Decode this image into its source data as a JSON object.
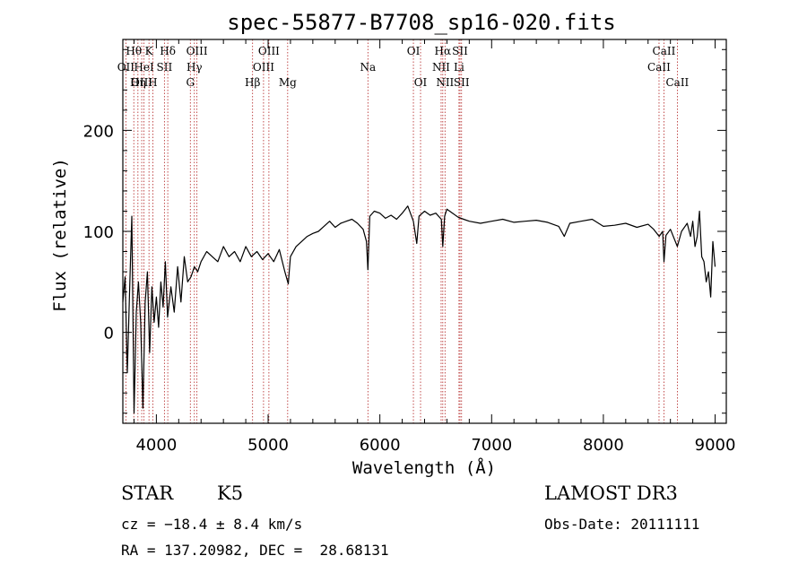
{
  "chart_data": {
    "type": "line",
    "title": "spec-55877-B7708_sp16-020.fits",
    "xlabel": "Wavelength (Å)",
    "ylabel": "Flux (relative)",
    "xlim": [
      3700,
      9100
    ],
    "ylim": [
      -90,
      290
    ],
    "xticks": [
      {
        "value": 4000,
        "label": "4000"
      },
      {
        "value": 5000,
        "label": "5000"
      },
      {
        "value": 6000,
        "label": "6000"
      },
      {
        "value": 7000,
        "label": "7000"
      },
      {
        "value": 8000,
        "label": "8000"
      },
      {
        "value": 9000,
        "label": "9000"
      }
    ],
    "yticks": [
      {
        "value": 0,
        "label": "0"
      },
      {
        "value": 100,
        "label": "100"
      },
      {
        "value": 200,
        "label": "200"
      }
    ],
    "series": [
      {
        "name": "flux",
        "x": [
          3700,
          3720,
          3740,
          3760,
          3780,
          3800,
          3820,
          3840,
          3860,
          3880,
          3900,
          3920,
          3940,
          3960,
          3980,
          4000,
          4020,
          4040,
          4060,
          4080,
          4100,
          4130,
          4160,
          4190,
          4220,
          4250,
          4280,
          4310,
          4340,
          4370,
          4400,
          4450,
          4500,
          4550,
          4600,
          4650,
          4700,
          4750,
          4800,
          4850,
          4900,
          4950,
          5000,
          5050,
          5100,
          5150,
          5180,
          5200,
          5250,
          5300,
          5350,
          5400,
          5450,
          5500,
          5550,
          5600,
          5650,
          5700,
          5750,
          5800,
          5850,
          5880,
          5893,
          5910,
          5950,
          6000,
          6050,
          6100,
          6150,
          6200,
          6250,
          6300,
          6330,
          6350,
          6400,
          6450,
          6500,
          6550,
          6563,
          6580,
          6600,
          6650,
          6700,
          6750,
          6800,
          6900,
          7000,
          7100,
          7200,
          7300,
          7400,
          7500,
          7600,
          7650,
          7700,
          7800,
          7900,
          8000,
          8100,
          8200,
          8300,
          8400,
          8450,
          8500,
          8530,
          8542,
          8560,
          8600,
          8662,
          8700,
          8750,
          8780,
          8800,
          8820,
          8840,
          8860,
          8880,
          8900,
          8920,
          8940,
          8960,
          8980,
          9000
        ],
        "y": [
          30,
          55,
          -40,
          40,
          115,
          -80,
          20,
          50,
          10,
          -75,
          30,
          60,
          -20,
          45,
          10,
          35,
          5,
          50,
          25,
          70,
          15,
          45,
          20,
          65,
          30,
          75,
          50,
          55,
          65,
          60,
          70,
          80,
          75,
          70,
          85,
          75,
          80,
          70,
          85,
          75,
          80,
          72,
          78,
          70,
          82,
          60,
          48,
          75,
          85,
          90,
          95,
          98,
          100,
          105,
          110,
          104,
          108,
          110,
          112,
          108,
          102,
          90,
          62,
          115,
          120,
          118,
          113,
          116,
          112,
          118,
          125,
          110,
          88,
          115,
          120,
          116,
          118,
          112,
          85,
          115,
          122,
          118,
          114,
          112,
          110,
          108,
          110,
          112,
          109,
          110,
          111,
          109,
          105,
          95,
          108,
          110,
          112,
          105,
          106,
          108,
          104,
          107,
          102,
          95,
          100,
          70,
          96,
          102,
          85,
          100,
          108,
          95,
          110,
          85,
          95,
          120,
          75,
          70,
          50,
          60,
          35,
          90,
          65
        ]
      }
    ]
  },
  "spectral_lines": [
    {
      "name": "Hθ",
      "wavelength": 3798,
      "row": 0
    },
    {
      "name": "OII",
      "wavelength": 3727,
      "row": 1
    },
    {
      "name": "OIII",
      "wavelength": 3869,
      "row": 2
    },
    {
      "name": "Hη",
      "wavelength": 3835,
      "row": 2
    },
    {
      "name": "K",
      "wavelength": 3934,
      "row": 0
    },
    {
      "name": "HeI",
      "wavelength": 3889,
      "row": 1
    },
    {
      "name": "H",
      "wavelength": 3968,
      "row": 2
    },
    {
      "name": "SII",
      "wavelength": 4072,
      "row": 1
    },
    {
      "name": "Hδ",
      "wavelength": 4102,
      "row": 0
    },
    {
      "name": "OIII",
      "wavelength": 4363,
      "row": 0
    },
    {
      "name": "Hγ",
      "wavelength": 4340,
      "row": 1
    },
    {
      "name": "G",
      "wavelength": 4304,
      "row": 2
    },
    {
      "name": "Hβ",
      "wavelength": 4861,
      "row": 2
    },
    {
      "name": "OIII",
      "wavelength": 5007,
      "row": 0
    },
    {
      "name": "OIII",
      "wavelength": 4959,
      "row": 1
    },
    {
      "name": "Mg",
      "wavelength": 5175,
      "row": 2
    },
    {
      "name": "Na",
      "wavelength": 5893,
      "row": 1
    },
    {
      "name": "OI",
      "wavelength": 6300,
      "row": 0
    },
    {
      "name": "OI",
      "wavelength": 6364,
      "row": 2
    },
    {
      "name": "Hα",
      "wavelength": 6563,
      "row": 0
    },
    {
      "name": "NII",
      "wavelength": 6548,
      "row": 1
    },
    {
      "name": "NII",
      "wavelength": 6583,
      "row": 2
    },
    {
      "name": "SII",
      "wavelength": 6717,
      "row": 0
    },
    {
      "name": "Li",
      "wavelength": 6708,
      "row": 1
    },
    {
      "name": "SII",
      "wavelength": 6731,
      "row": 2
    },
    {
      "name": "CaII",
      "wavelength": 8542,
      "row": 0
    },
    {
      "name": "CaII",
      "wavelength": 8498,
      "row": 1
    },
    {
      "name": "CaII",
      "wavelength": 8662,
      "row": 2
    }
  ],
  "info": {
    "class": "STAR",
    "subclass": "K5",
    "survey": "LAMOST DR3",
    "cz": "cz = −18.4 ± 8.4 km/s",
    "obs_date": "Obs-Date: 20111111",
    "coords": "RA = 137.20982, DEC =  28.68131"
  },
  "colors": {
    "spectrum": "#000000",
    "line_markers": "#b22222"
  }
}
